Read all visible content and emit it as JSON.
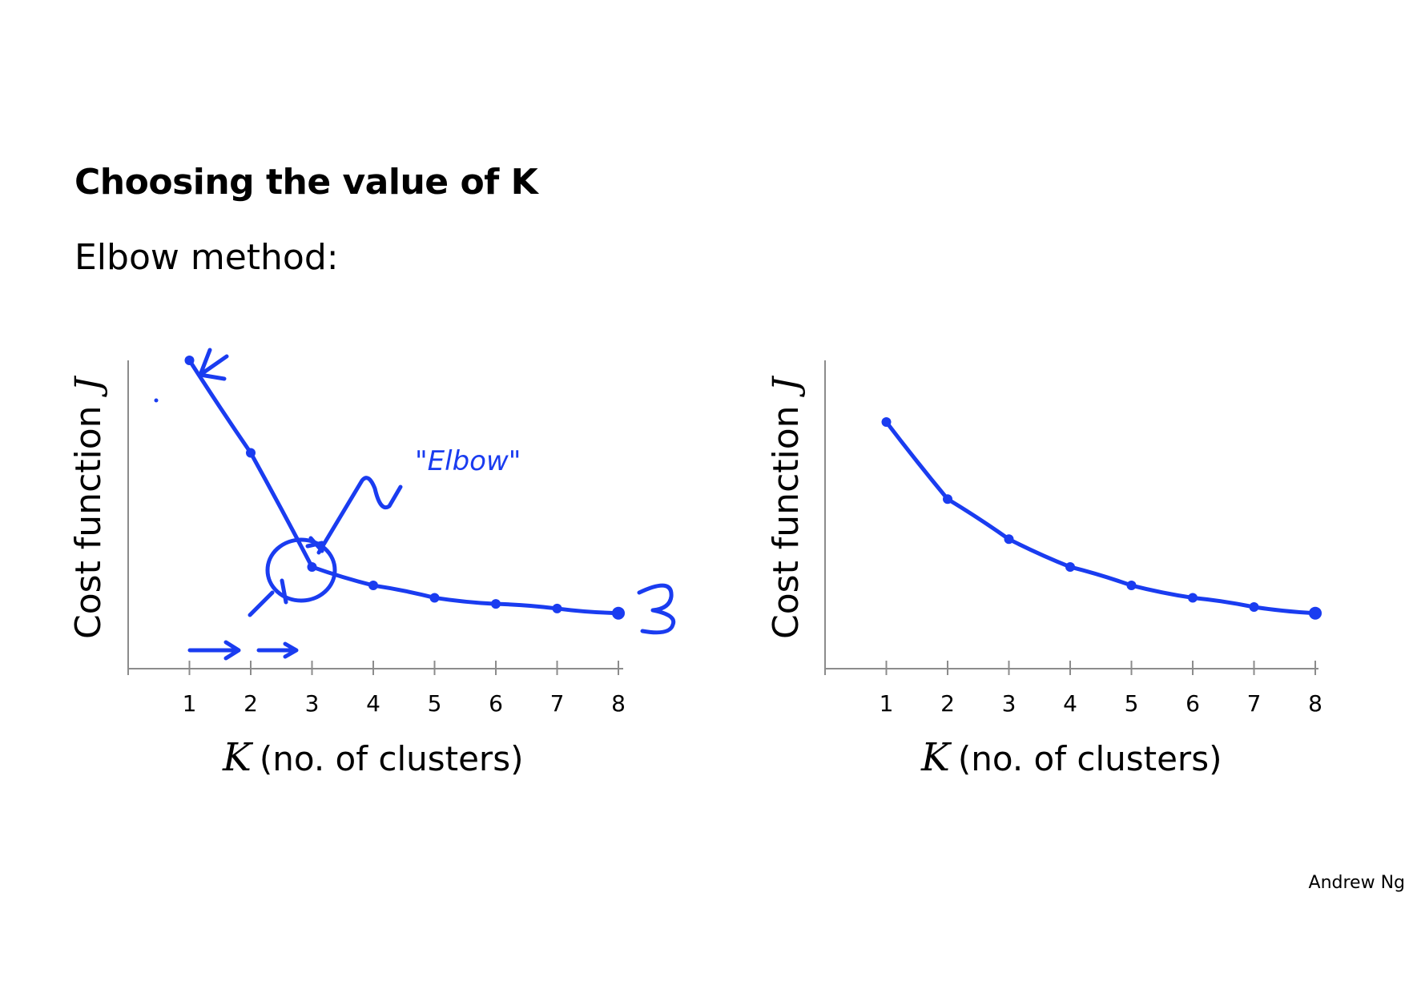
{
  "slide": {
    "title": "Choosing the value of K",
    "subtitle": "Elbow method:",
    "author": "Andrew Ng"
  },
  "colors": {
    "ink": "#1a3cf0",
    "axis": "#8c8c8c"
  },
  "chart_data": [
    {
      "type": "line",
      "x": [
        1,
        2,
        3,
        4,
        5,
        6,
        7,
        8
      ],
      "values": [
        100,
        70,
        33,
        27,
        23,
        21,
        19.5,
        18
      ],
      "ylabel": "Cost function",
      "ylabel_var": "J",
      "xlabel_var": "K",
      "xlabel": "(no. of clusters)",
      "xlim": [
        0,
        9
      ],
      "ylim": [
        0,
        100
      ],
      "grid": false,
      "annotations": [
        {
          "text": "\"Elbow\""
        }
      ]
    },
    {
      "type": "line",
      "x": [
        1,
        2,
        3,
        4,
        5,
        6,
        7,
        8
      ],
      "values": [
        80,
        55,
        42,
        33,
        27,
        23,
        20,
        18
      ],
      "ylabel": "Cost function",
      "ylabel_var": "J",
      "xlabel_var": "K",
      "xlabel": "(no. of clusters)",
      "xlim": [
        0,
        9
      ],
      "ylim": [
        0,
        100
      ],
      "grid": false
    }
  ]
}
